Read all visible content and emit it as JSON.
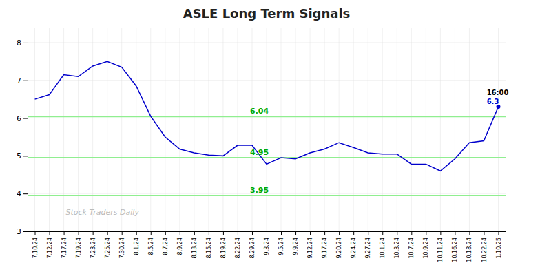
{
  "chart_data": {
    "type": "line",
    "title": "ASLE Long Term Signals",
    "categories": [
      "7.10.24",
      "7.12.24",
      "7.17.24",
      "7.19.24",
      "7.23.24",
      "7.25.24",
      "7.30.24",
      "8.1.24",
      "8.5.24",
      "8.7.24",
      "8.9.24",
      "8.13.24",
      "8.15.24",
      "8.19.24",
      "8.22.24",
      "8.29.24",
      "9.3.24",
      "9.5.24",
      "9.9.24",
      "9.12.24",
      "9.17.24",
      "9.20.24",
      "9.24.24",
      "9.27.24",
      "10.1.24",
      "10.3.24",
      "10.7.24",
      "10.9.24",
      "10.11.24",
      "10.16.24",
      "10.18.24",
      "10.22.24",
      "1.10.25"
    ],
    "values": [
      6.5,
      6.62,
      7.15,
      7.1,
      7.38,
      7.5,
      7.35,
      6.85,
      6.05,
      5.5,
      5.18,
      5.08,
      5.02,
      5.0,
      5.28,
      5.28,
      4.78,
      4.95,
      4.92,
      5.08,
      5.18,
      5.35,
      5.22,
      5.08,
      5.05,
      5.05,
      4.78,
      4.78,
      4.6,
      4.92,
      5.35,
      5.4,
      6.3
    ],
    "color": "#0000cc",
    "ylim": [
      3,
      8.4
    ],
    "yticks": [
      3,
      4,
      5,
      6,
      7,
      8
    ],
    "grid": true,
    "hlines": [
      {
        "value": 6.04,
        "label": "6.04",
        "color": "#90EE90",
        "label_color": "#00aa00"
      },
      {
        "value": 4.95,
        "label": "4.95",
        "color": "#90EE90",
        "label_color": "#00aa00"
      },
      {
        "value": 3.95,
        "label": "3.95",
        "color": "#90EE90",
        "label_color": "#00aa00"
      }
    ],
    "watermark": "Stock Traders Daily",
    "annotations": [
      {
        "text": "16:00",
        "color": "#000000"
      },
      {
        "text": "6.3",
        "color": "#0000cc"
      }
    ]
  }
}
